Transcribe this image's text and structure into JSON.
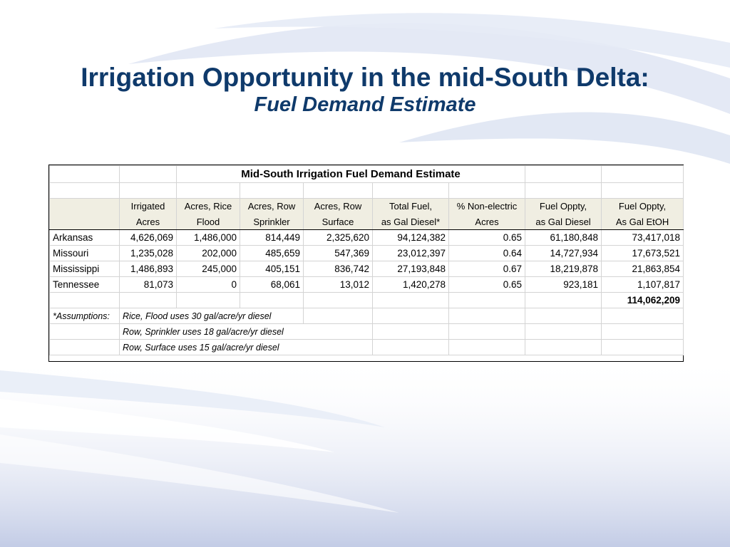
{
  "slide": {
    "title": "Irrigation Opportunity in the mid-South Delta:",
    "subtitle": "Fuel Demand Estimate"
  },
  "table": {
    "title": "Mid-South Irrigation Fuel Demand Estimate",
    "headers": [
      [
        "Irrigated",
        "Acres"
      ],
      [
        "Acres, Rice",
        "Flood"
      ],
      [
        "Acres, Row",
        "Sprinkler"
      ],
      [
        "Acres, Row",
        "Surface"
      ],
      [
        "Total Fuel,",
        "as Gal Diesel*"
      ],
      [
        "% Non-electric",
        "Acres"
      ],
      [
        "Fuel Oppty,",
        "as Gal Diesel"
      ],
      [
        "Fuel Oppty,",
        "As Gal EtOH"
      ]
    ],
    "rows": [
      [
        "Arkansas",
        "4,626,069",
        "1,486,000",
        "814,449",
        "2,325,620",
        "94,124,382",
        "0.65",
        "61,180,848",
        "73,417,018"
      ],
      [
        "Missouri",
        "1,235,028",
        "202,000",
        "485,659",
        "547,369",
        "23,012,397",
        "0.64",
        "14,727,934",
        "17,673,521"
      ],
      [
        "Mississippi",
        "1,486,893",
        "245,000",
        "405,151",
        "836,742",
        "27,193,848",
        "0.67",
        "18,219,878",
        "21,863,854"
      ],
      [
        "Tennessee",
        "81,073",
        "0",
        "68,061",
        "13,012",
        "1,420,278",
        "0.65",
        "923,181",
        "1,107,817"
      ]
    ],
    "total": "114,062,209",
    "assumptions_label": "*Assumptions:",
    "assumptions": [
      "Rice, Flood uses 30 gal/acre/yr diesel",
      "Row, Sprinkler uses 18 gal/acre/yr diesel",
      "Row, Surface uses 15 gal/acre/yr diesel"
    ]
  },
  "colors": {
    "title": "#0f3a6b",
    "header_fill": "#f0eee2",
    "wave": "#c9d3ea"
  }
}
